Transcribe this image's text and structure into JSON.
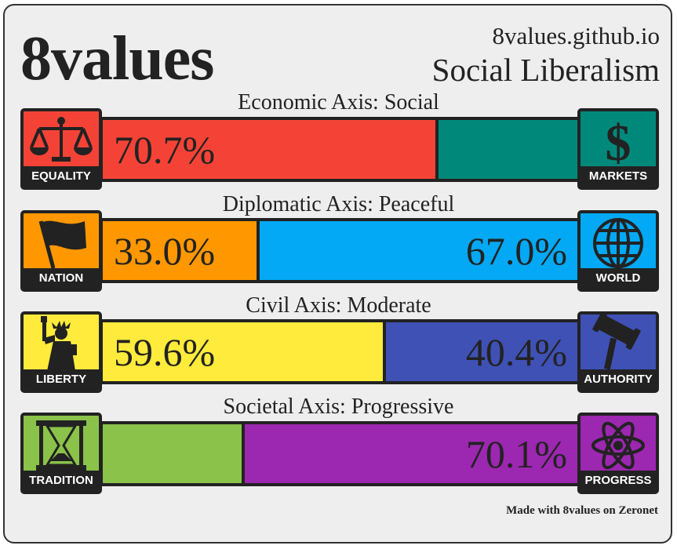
{
  "header": {
    "brand": "8values",
    "site": "8values.github.io",
    "ideology": "Social Liberalism"
  },
  "axes": [
    {
      "label": "Economic Axis: Social",
      "left_icon": {
        "name": "scales-icon",
        "caption": "EQUALITY",
        "color": "#f44336"
      },
      "right_icon": {
        "name": "dollar-icon",
        "caption": "MARKETS",
        "color": "#00897b"
      },
      "left_value": 70.7,
      "left_text": "70.7%",
      "left_color": "#f44336",
      "right_text": "",
      "right_color": "#00897b"
    },
    {
      "label": "Diplomatic Axis: Peaceful",
      "left_icon": {
        "name": "flag-icon",
        "caption": "NATION",
        "color": "#ff9800"
      },
      "right_icon": {
        "name": "globe-icon",
        "caption": "WORLD",
        "color": "#03a9f4"
      },
      "left_value": 33.0,
      "left_text": "33.0%",
      "left_color": "#ff9800",
      "right_text": "67.0%",
      "right_color": "#03a9f4"
    },
    {
      "label": "Civil Axis: Moderate",
      "left_icon": {
        "name": "statue-of-liberty-icon",
        "caption": "LIBERTY",
        "color": "#ffeb3b"
      },
      "right_icon": {
        "name": "gavel-icon",
        "caption": "AUTHORITY",
        "color": "#3f51b5"
      },
      "left_value": 59.6,
      "left_text": "59.6%",
      "left_color": "#ffeb3b",
      "right_text": "40.4%",
      "right_color": "#3f51b5"
    },
    {
      "label": "Societal Axis: Progressive",
      "left_icon": {
        "name": "hourglass-icon",
        "caption": "TRADITION",
        "color": "#8bc34a"
      },
      "right_icon": {
        "name": "atom-icon",
        "caption": "PROGRESS",
        "color": "#9c27b0"
      },
      "left_value": 29.9,
      "left_text": "",
      "left_color": "#8bc34a",
      "right_text": "70.1%",
      "right_color": "#9c27b0"
    }
  ],
  "footer": "Made with 8values on Zeronet"
}
